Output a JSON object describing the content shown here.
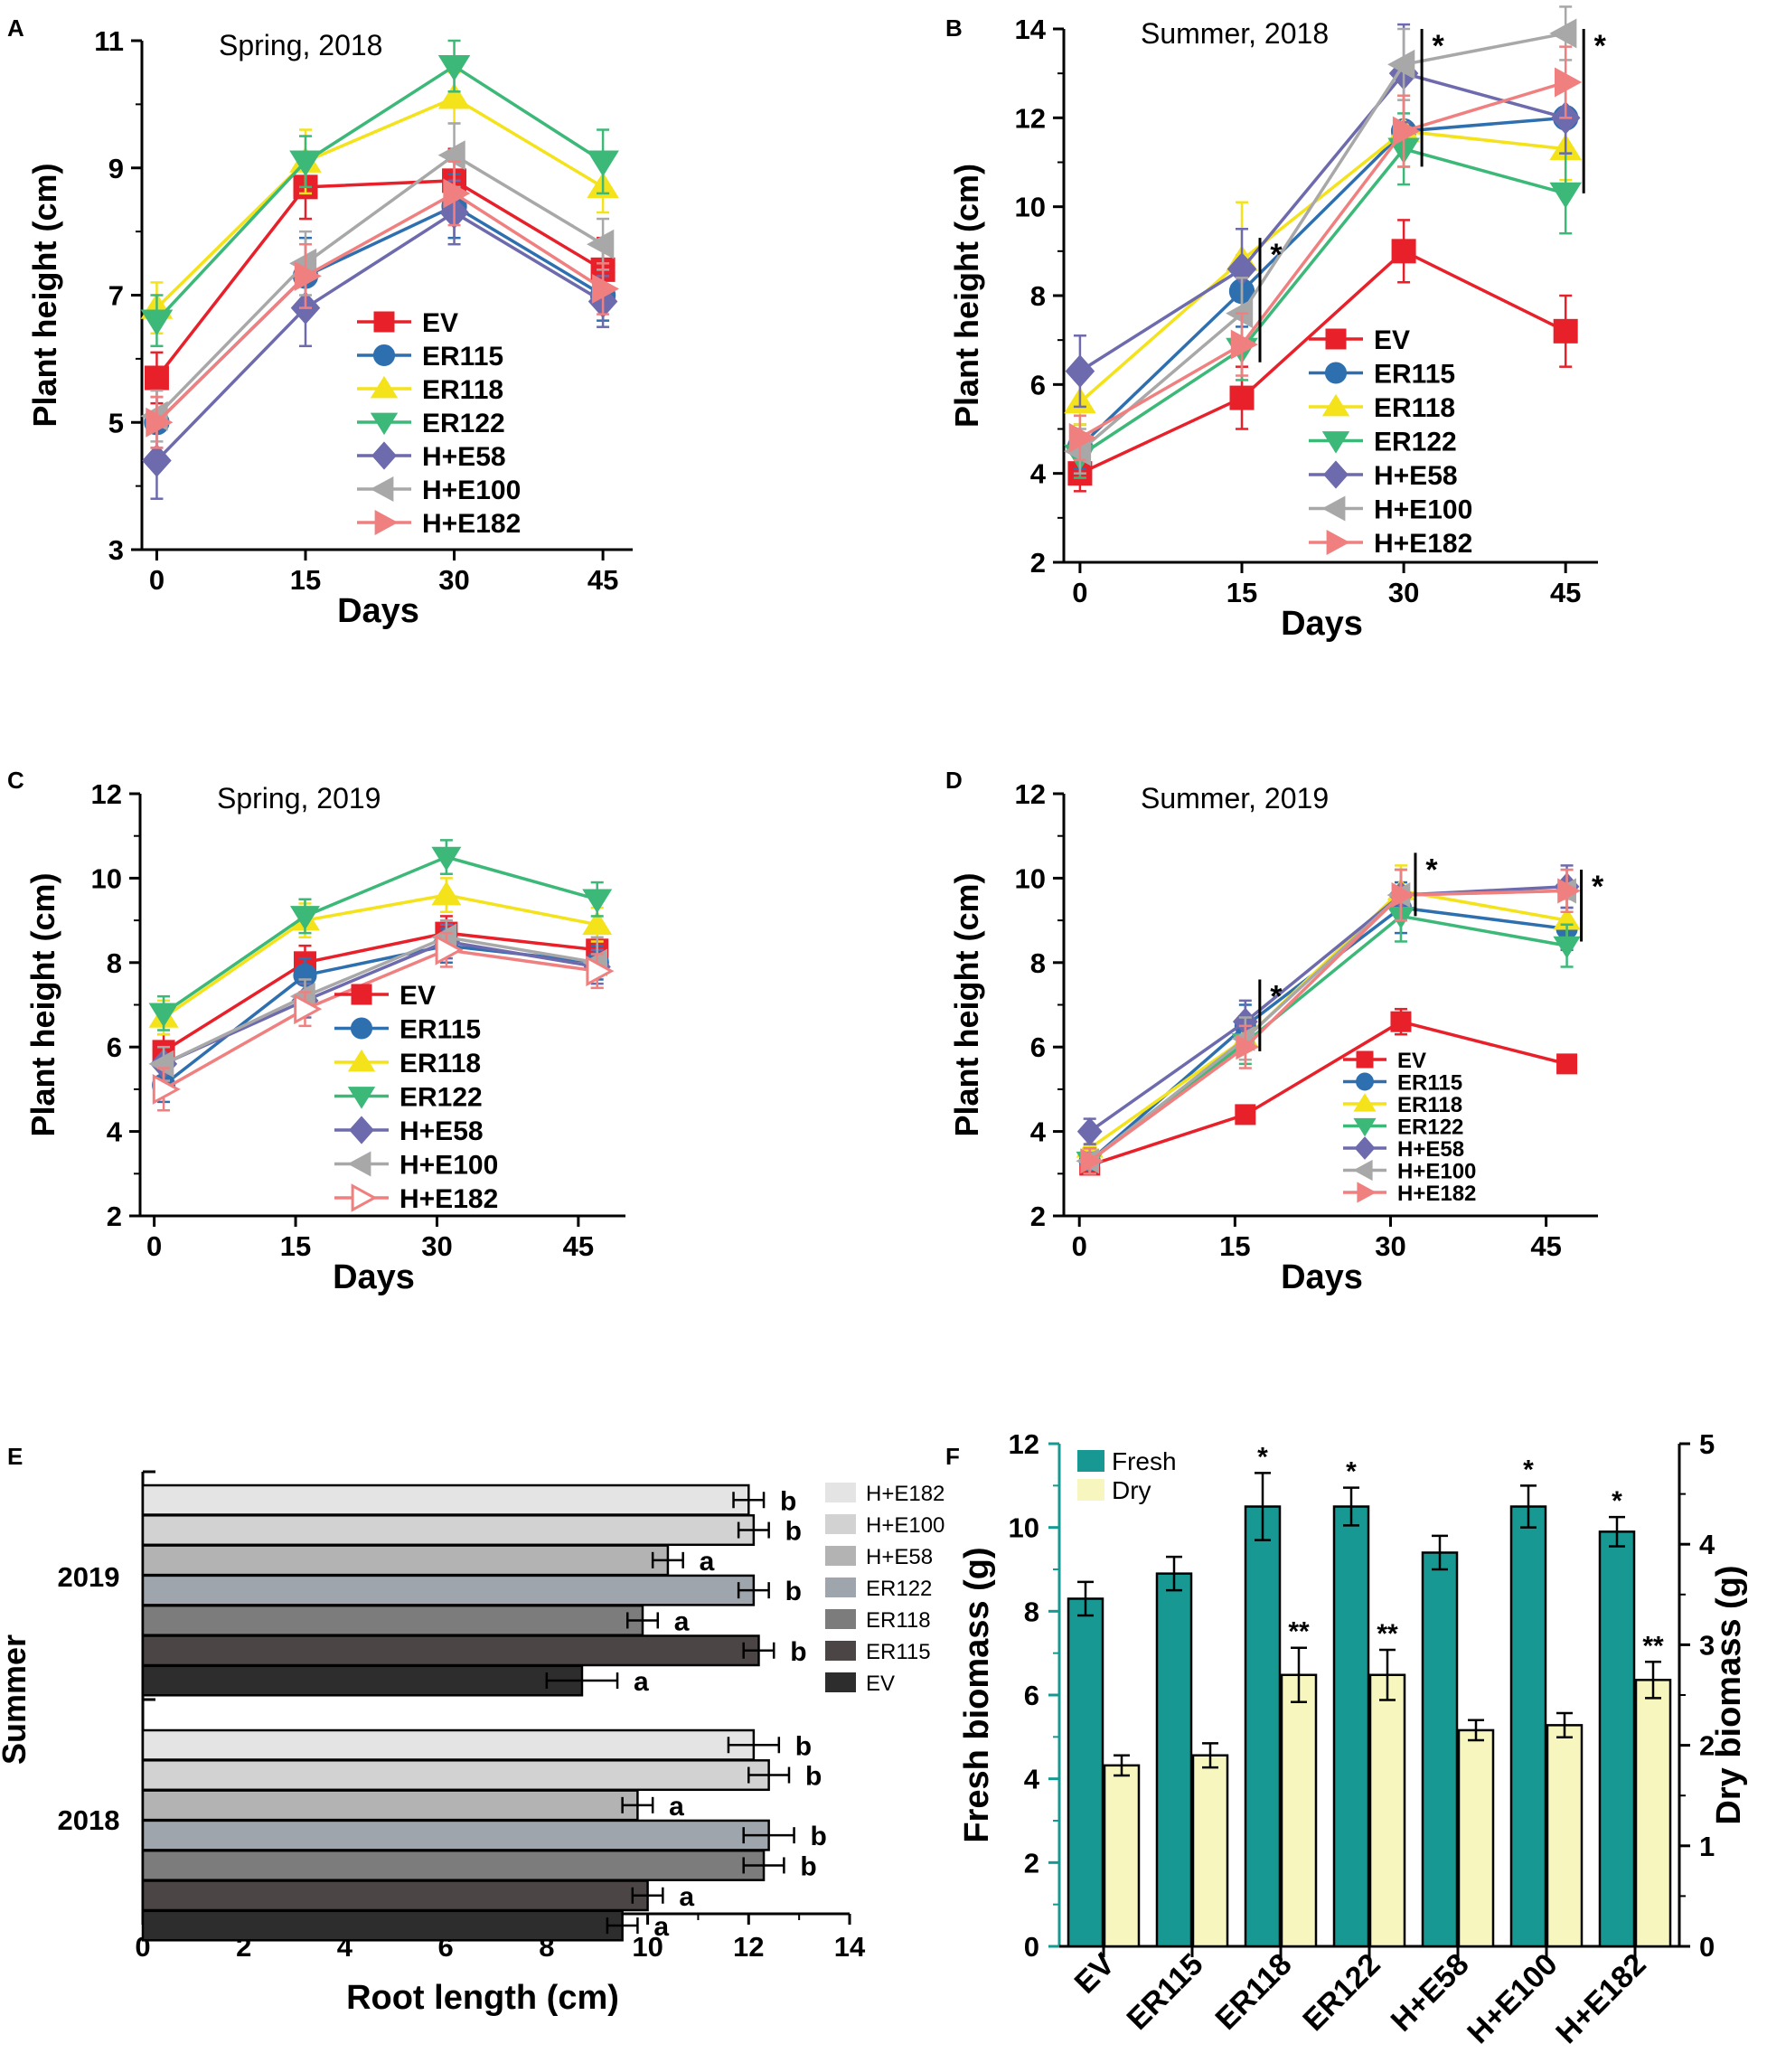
{
  "panel_letters": [
    "A",
    "B",
    "C",
    "D",
    "E",
    "F"
  ],
  "chart_data": [
    {
      "id": "A",
      "type": "line",
      "title": "Spring, 2018",
      "xlabel": "Days",
      "ylabel": "Plant height (cm)",
      "xticks": [
        0,
        15,
        30,
        45
      ],
      "xlim": [
        -1.5,
        48
      ],
      "yticks": [
        3,
        5,
        7,
        9,
        11
      ],
      "ylim": [
        3,
        11
      ],
      "legend_position": "lower-right",
      "x": [
        0,
        15,
        30,
        45
      ],
      "series": [
        {
          "name": "EV",
          "values": [
            5.7,
            8.7,
            8.8,
            7.4
          ],
          "err": [
            0.4,
            0.5,
            0.5,
            0.5
          ]
        },
        {
          "name": "ER115",
          "values": [
            5.0,
            7.3,
            8.4,
            7.0
          ],
          "err": [
            0.4,
            0.6,
            0.5,
            0.4
          ]
        },
        {
          "name": "ER118",
          "values": [
            6.8,
            9.1,
            10.1,
            8.7
          ],
          "err": [
            0.4,
            0.5,
            0.4,
            0.4
          ]
        },
        {
          "name": "ER122",
          "values": [
            6.6,
            9.1,
            10.6,
            9.1
          ],
          "err": [
            0.4,
            0.4,
            0.4,
            0.5
          ]
        },
        {
          "name": "H+E58",
          "values": [
            4.4,
            6.8,
            8.3,
            6.9
          ],
          "err": [
            0.6,
            0.6,
            0.5,
            0.4
          ]
        },
        {
          "name": "H+E100",
          "values": [
            5.1,
            7.5,
            9.2,
            7.8
          ],
          "err": [
            0.4,
            0.5,
            0.5,
            0.4
          ]
        },
        {
          "name": "H+E182",
          "values": [
            5.0,
            7.3,
            8.6,
            7.1
          ],
          "err": [
            0.4,
            0.5,
            0.5,
            0.4
          ]
        }
      ]
    },
    {
      "id": "B",
      "type": "line",
      "title": "Summer, 2018",
      "xlabel": "Days",
      "ylabel": "Plant height (cm)",
      "xticks": [
        0,
        15,
        30,
        45
      ],
      "xlim": [
        -1.5,
        48
      ],
      "yticks": [
        2,
        4,
        6,
        8,
        10,
        12,
        14
      ],
      "ylim": [
        2,
        14
      ],
      "legend_position": "lower-right",
      "x": [
        0,
        15,
        30,
        45
      ],
      "series": [
        {
          "name": "EV",
          "values": [
            4.0,
            5.7,
            9.0,
            7.2
          ],
          "err": [
            0.4,
            0.7,
            0.7,
            0.8
          ]
        },
        {
          "name": "ER115",
          "values": [
            4.6,
            8.1,
            11.7,
            12.0
          ],
          "err": [
            0.5,
            0.8,
            0.8,
            0.8
          ]
        },
        {
          "name": "ER118",
          "values": [
            5.6,
            8.8,
            11.7,
            11.3
          ],
          "err": [
            0.5,
            1.3,
            0.8,
            0.7
          ]
        },
        {
          "name": "ER122",
          "values": [
            4.4,
            6.8,
            11.3,
            10.3
          ],
          "err": [
            0.5,
            0.7,
            0.8,
            0.9
          ]
        },
        {
          "name": "H+E58",
          "values": [
            6.3,
            8.6,
            13.0,
            12.0
          ],
          "err": [
            0.8,
            0.9,
            1.1,
            0.8
          ]
        },
        {
          "name": "H+E100",
          "values": [
            4.5,
            7.6,
            13.2,
            13.9
          ],
          "err": [
            0.5,
            0.8,
            0.8,
            0.6
          ]
        },
        {
          "name": "H+E182",
          "values": [
            4.8,
            6.9,
            11.7,
            12.8
          ],
          "err": [
            0.5,
            0.7,
            0.8,
            0.8
          ]
        }
      ],
      "significance": [
        {
          "x": 15,
          "y_from": 6.5,
          "y_to": 9.3,
          "label": "*"
        },
        {
          "x": 30,
          "y_from": 10.9,
          "y_to": 14.0,
          "label": "*"
        },
        {
          "x": 45,
          "y_from": 10.3,
          "y_to": 14.0,
          "label": "*"
        }
      ]
    },
    {
      "id": "C",
      "type": "line",
      "title": "Spring, 2019",
      "xlabel": "Days",
      "ylabel": "Plant height (cm)",
      "xticks": [
        0,
        15,
        30,
        45
      ],
      "xlim": [
        -1.5,
        50
      ],
      "yticks": [
        2,
        4,
        6,
        8,
        10,
        12
      ],
      "ylim": [
        2,
        12
      ],
      "legend_position": "lower-right",
      "x": [
        1,
        16,
        31,
        47
      ],
      "series": [
        {
          "name": "EV",
          "values": [
            5.9,
            8.0,
            8.7,
            8.3
          ],
          "err": [
            0.4,
            0.4,
            0.4,
            0.4
          ]
        },
        {
          "name": "ER115",
          "values": [
            5.1,
            7.7,
            8.4,
            8.0
          ],
          "err": [
            0.4,
            0.4,
            0.4,
            0.4
          ]
        },
        {
          "name": "ER118",
          "values": [
            6.7,
            9.0,
            9.6,
            8.9
          ],
          "err": [
            0.4,
            0.4,
            0.4,
            0.4
          ]
        },
        {
          "name": "ER122",
          "values": [
            6.8,
            9.1,
            10.5,
            9.5
          ],
          "err": [
            0.4,
            0.4,
            0.4,
            0.4
          ]
        },
        {
          "name": "H+E58",
          "values": [
            5.6,
            7.1,
            8.5,
            7.9
          ],
          "err": [
            0.4,
            0.4,
            0.4,
            0.4
          ]
        },
        {
          "name": "H+E100",
          "values": [
            5.6,
            7.2,
            8.6,
            8.0
          ],
          "err": [
            0.4,
            0.4,
            0.4,
            0.6
          ]
        },
        {
          "name": "H+E182",
          "values": [
            5.0,
            6.9,
            8.3,
            7.8
          ],
          "err": [
            0.5,
            0.4,
            0.4,
            0.4
          ]
        }
      ]
    },
    {
      "id": "D",
      "type": "line",
      "title": "Summer, 2019",
      "xlabel": "Days",
      "ylabel": "Plant height (cm)",
      "xticks": [
        0,
        15,
        30,
        45
      ],
      "xlim": [
        -1.5,
        50
      ],
      "yticks": [
        2,
        4,
        6,
        8,
        10,
        12
      ],
      "ylim": [
        2,
        12
      ],
      "legend_position": "lower-right",
      "x": [
        1,
        16,
        31,
        47
      ],
      "series": [
        {
          "name": "EV",
          "values": [
            3.2,
            4.4,
            6.6,
            5.6
          ],
          "err": [
            0.2,
            0.2,
            0.3,
            0.2
          ]
        },
        {
          "name": "ER115",
          "values": [
            3.3,
            6.5,
            9.3,
            8.8
          ],
          "err": [
            0.3,
            0.5,
            0.6,
            0.5
          ]
        },
        {
          "name": "ER118",
          "values": [
            3.6,
            6.2,
            9.7,
            9.0
          ],
          "err": [
            0.4,
            0.5,
            0.6,
            0.5
          ]
        },
        {
          "name": "ER122",
          "values": [
            3.3,
            6.1,
            9.1,
            8.4
          ],
          "err": [
            0.3,
            0.5,
            0.6,
            0.5
          ]
        },
        {
          "name": "H+E58",
          "values": [
            4.0,
            6.6,
            9.6,
            9.8
          ],
          "err": [
            0.3,
            0.5,
            0.6,
            0.5
          ]
        },
        {
          "name": "H+E100",
          "values": [
            3.3,
            6.2,
            9.6,
            9.7
          ],
          "err": [
            0.3,
            0.5,
            0.6,
            0.5
          ]
        },
        {
          "name": "H+E182",
          "values": [
            3.3,
            6.0,
            9.6,
            9.7
          ],
          "err": [
            0.3,
            0.5,
            0.6,
            0.5
          ]
        }
      ],
      "significance": [
        {
          "x": 16,
          "y_from": 5.9,
          "y_to": 7.6,
          "label": "*"
        },
        {
          "x": 31,
          "y_from": 9.1,
          "y_to": 10.6,
          "label": "*"
        },
        {
          "x": 47,
          "y_from": 8.5,
          "y_to": 10.2,
          "label": "*"
        }
      ]
    },
    {
      "id": "E",
      "type": "bar",
      "orientation": "horizontal",
      "xlabel": "Root length (cm)",
      "ylabel": "Summer",
      "xticks": [
        0,
        2,
        4,
        6,
        8,
        10,
        12,
        14
      ],
      "xlim": [
        0,
        14
      ],
      "legend_position": "right",
      "categories": [
        "H+E182",
        "H+E100",
        "H+E58",
        "ER122",
        "ER118",
        "ER115",
        "EV"
      ],
      "colors": [
        "#e4e4e4",
        "#d2d2d2",
        "#b3b3b3",
        "#9fa5ad",
        "#7c7c7c",
        "#4b4645",
        "#2d2d2d"
      ],
      "groups": [
        {
          "label": "2019",
          "values": [
            12.0,
            12.1,
            10.4,
            12.1,
            9.9,
            12.2,
            8.7
          ],
          "err": [
            0.3,
            0.3,
            0.3,
            0.3,
            0.3,
            0.3,
            0.7
          ],
          "letters": [
            "b",
            "b",
            "a",
            "b",
            "a",
            "b",
            "a"
          ]
        },
        {
          "label": "2018",
          "values": [
            12.1,
            12.4,
            9.8,
            12.4,
            12.3,
            10.0,
            9.5
          ],
          "err": [
            0.5,
            0.4,
            0.3,
            0.5,
            0.4,
            0.3,
            0.3
          ],
          "letters": [
            "b",
            "b",
            "a",
            "b",
            "b",
            "a",
            "a"
          ]
        }
      ]
    },
    {
      "id": "F",
      "type": "bar",
      "categories": [
        "EV",
        "ER115",
        "ER118",
        "ER122",
        "H+E58",
        "H+E100",
        "H+E182"
      ],
      "ylabel": "Fresh biomass (g)",
      "y2label": "Dry biomass (g)",
      "yticks": [
        0,
        2,
        4,
        6,
        8,
        10,
        12
      ],
      "ylim": [
        0,
        12
      ],
      "y2ticks": [
        0,
        1,
        2,
        3,
        4,
        5
      ],
      "y2lim": [
        0,
        5
      ],
      "legend_position": "top-left",
      "series": [
        {
          "name": "Fresh",
          "axis": "left",
          "color": "#179892",
          "values": [
            8.3,
            8.9,
            10.5,
            10.5,
            9.4,
            10.5,
            9.9
          ],
          "err": [
            0.4,
            0.4,
            0.8,
            0.45,
            0.4,
            0.5,
            0.35
          ],
          "marks": [
            "",
            "",
            "*",
            "*",
            "",
            "*",
            "*"
          ]
        },
        {
          "name": "Dry",
          "axis": "right",
          "color": "#f8f6bf",
          "values": [
            1.8,
            1.9,
            2.7,
            2.7,
            2.15,
            2.2,
            2.65
          ],
          "err": [
            0.1,
            0.12,
            0.27,
            0.25,
            0.1,
            0.12,
            0.18
          ],
          "marks": [
            "",
            "",
            "**",
            "**",
            "",
            "",
            "**"
          ]
        }
      ]
    }
  ],
  "colors": {
    "EV": "#e8202a",
    "ER115": "#2e6fb0",
    "ER118": "#f4e21a",
    "ER122": "#3cb878",
    "H+E58": "#6d6aad",
    "H+E100": "#a8a8a8",
    "H+E182": "#f08080",
    "axis": "#000000",
    "teal_axis": "#179892"
  }
}
